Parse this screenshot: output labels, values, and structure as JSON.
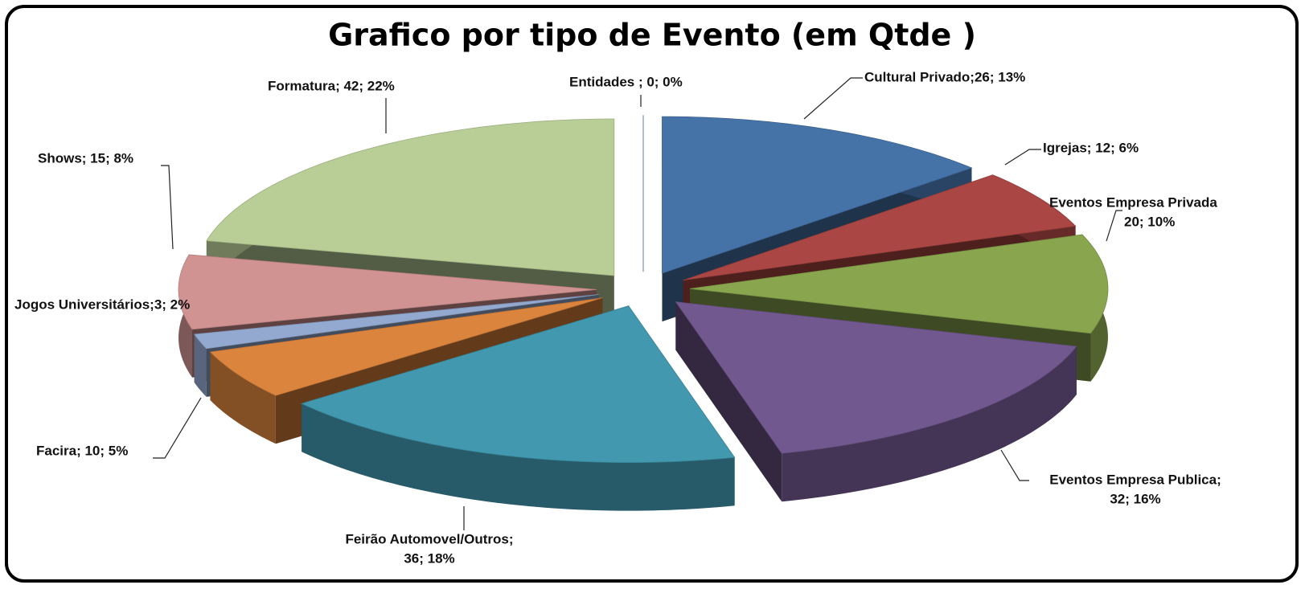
{
  "chart_data": {
    "type": "pie3d",
    "title": "Grafico por tipo de Evento (em Qtde )",
    "values": [
      0,
      26,
      12,
      20,
      32,
      36,
      10,
      3,
      15,
      42
    ],
    "value_labels": [
      [
        "Entidades ; 0; 0%"
      ],
      [
        "Cultural Privado;26; 13%"
      ],
      [
        "Igrejas; 12; 6%"
      ],
      [
        "Eventos Empresa Privada",
        "20; 10%"
      ],
      [
        "Eventos Empresa Publica;",
        "32; 16%"
      ],
      [
        "Feirão Automovel/Outros;",
        "36; 18%"
      ],
      [
        "Facira; 10; 5%"
      ],
      [
        "Jogos Universitários;3; 2%"
      ],
      [
        "Shows; 15; 8%"
      ],
      [
        "Formatura; 42; 22%"
      ]
    ],
    "colors": [
      "#4572a7",
      "#4572a7",
      "#aa4643",
      "#89a54e",
      "#71588f",
      "#4198af",
      "#db843d",
      "#93a9cf",
      "#d19392",
      "#b9cd96"
    ]
  }
}
